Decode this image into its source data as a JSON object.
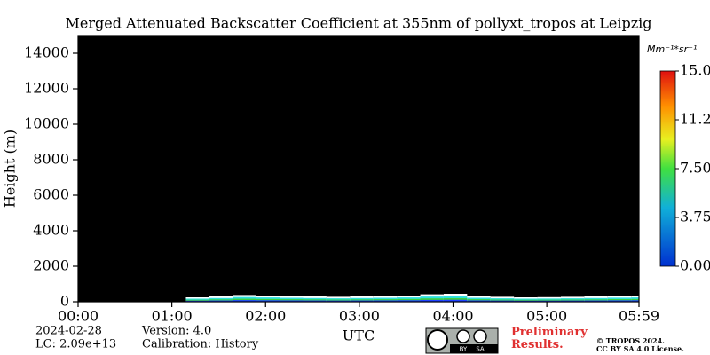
{
  "chart_data": {
    "type": "heatmap",
    "title": "Merged Attenuated Backscatter Coefficient at 355nm of pollyxt_tropos at Leipzig",
    "y_label": "Height (m)",
    "x_label": "UTC",
    "xlim": [
      0,
      5.9833
    ],
    "ylim": [
      0,
      15000
    ],
    "xticks": [
      {
        "value": 0,
        "label": "00:00"
      },
      {
        "value": 1,
        "label": "01:00"
      },
      {
        "value": 2,
        "label": "02:00"
      },
      {
        "value": 3,
        "label": "03:00"
      },
      {
        "value": 4,
        "label": "04:00"
      },
      {
        "value": 5,
        "label": "05:00"
      },
      {
        "value": 5.9833,
        "label": "05:59"
      }
    ],
    "yticks": [
      0,
      2000,
      4000,
      6000,
      8000,
      10000,
      12000,
      14000
    ],
    "x": [
      1.15,
      1.4,
      1.65,
      1.9,
      2.15,
      2.4,
      2.65,
      2.9,
      3.15,
      3.4,
      3.65,
      3.9,
      4.15,
      4.4,
      4.65,
      4.9,
      5.15,
      5.4,
      5.65,
      5.9
    ],
    "values": [
      250,
      300,
      380,
      350,
      320,
      300,
      280,
      300,
      320,
      350,
      420,
      450,
      320,
      280,
      250,
      260,
      280,
      300,
      330,
      350
    ],
    "background_color": "#000000",
    "colorbar": {
      "label": "Mm⁻¹*sr⁻¹",
      "clim": [
        0,
        15
      ],
      "ticks": [
        {
          "value": 0,
          "label": "0.00"
        },
        {
          "value": 3.75,
          "label": "3.75"
        },
        {
          "value": 7.5,
          "label": "7.50"
        },
        {
          "value": 11.25,
          "label": "11.2"
        },
        {
          "value": 15,
          "label": "15.0"
        }
      ]
    },
    "footer": {
      "date": "2024-02-28",
      "lc": "LC: 2.09e+13",
      "version": "Version: 4.0",
      "calibration": "Calibration: History",
      "preliminary": "Preliminary Results.",
      "copyright": "© TROPOS 2024.",
      "license": "CC BY SA 4.0 License.",
      "badge_by": "BY",
      "badge_sa": "SA"
    }
  }
}
